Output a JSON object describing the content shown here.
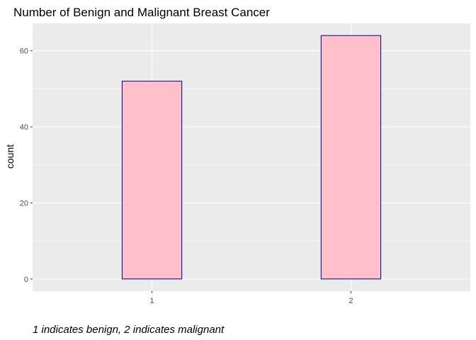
{
  "chart_data": {
    "type": "bar",
    "title": "Number of Benign and Malignant Breast Cancer",
    "caption": "1 indicates benign, 2 indicates malignant",
    "xlabel": "",
    "ylabel": "count",
    "categories": [
      "1",
      "2"
    ],
    "values": [
      52,
      64
    ],
    "yticks": [
      0,
      20,
      40,
      60
    ],
    "ylim": [
      -3.2,
      67.2
    ],
    "grid": true,
    "legend": "none",
    "colors": {
      "panel_background": "#ebebeb",
      "grid_major": "#ffffff",
      "bar_fill": "#ffc0cb",
      "bar_outline": "#000080"
    }
  }
}
